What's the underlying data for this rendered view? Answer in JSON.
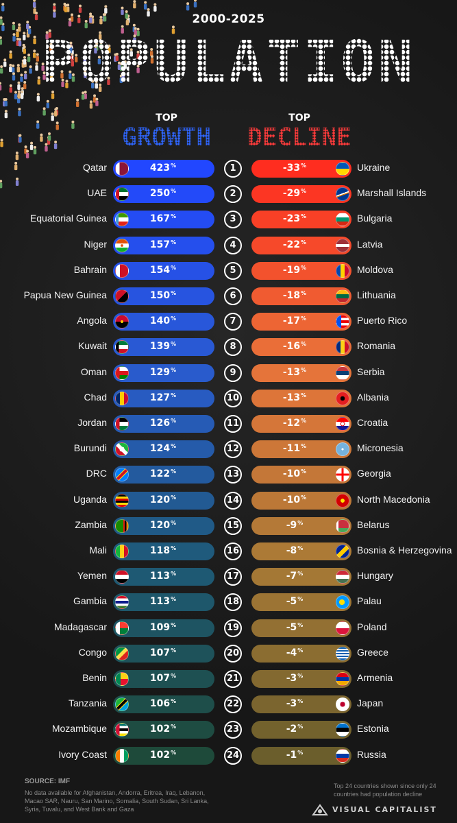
{
  "header": {
    "years": "2000-2025",
    "title": "POPULATION"
  },
  "columns": {
    "growth": {
      "top": "TOP",
      "label": "GROWTH",
      "color": "#2f66ff"
    },
    "decline": {
      "top": "TOP",
      "label": "DECLINE",
      "color": "#ff3b3b"
    }
  },
  "chart_data": {
    "type": "bar",
    "title": "POPULATION",
    "subtitle": "2000-2025",
    "unit": "%",
    "ranks": [
      1,
      2,
      3,
      4,
      5,
      6,
      7,
      8,
      9,
      10,
      11,
      12,
      13,
      14,
      15,
      16,
      17,
      18,
      19,
      20,
      21,
      22,
      23,
      24
    ],
    "series": [
      {
        "name": "GROWTH",
        "categories": [
          "Qatar",
          "UAE",
          "Equatorial Guinea",
          "Niger",
          "Bahrain",
          "Papua New Guinea",
          "Angola",
          "Kuwait",
          "Oman",
          "Chad",
          "Jordan",
          "Burundi",
          "DRC",
          "Uganda",
          "Zambia",
          "Mali",
          "Yemen",
          "Gambia",
          "Madagascar",
          "Congo",
          "Benin",
          "Tanzania",
          "Mozambique",
          "Ivory Coast"
        ],
        "values": [
          423,
          250,
          167,
          157,
          154,
          150,
          140,
          139,
          129,
          127,
          126,
          124,
          122,
          120,
          120,
          118,
          113,
          113,
          109,
          107,
          107,
          106,
          102,
          102
        ]
      },
      {
        "name": "DECLINE",
        "categories": [
          "Ukraine",
          "Marshall Islands",
          "Bulgaria",
          "Latvia",
          "Moldova",
          "Lithuania",
          "Puerto Rico",
          "Romania",
          "Serbia",
          "Albania",
          "Croatia",
          "Micronesia",
          "Georgia",
          "North Macedonia",
          "Belarus",
          "Bosnia & Herzegovina",
          "Hungary",
          "Palau",
          "Poland",
          "Greece",
          "Armenia",
          "Japan",
          "Estonia",
          "Russia"
        ],
        "values": [
          -33,
          -29,
          -23,
          -22,
          -19,
          -18,
          -17,
          -16,
          -13,
          -13,
          -12,
          -11,
          -10,
          -10,
          -9,
          -8,
          -7,
          -5,
          -5,
          -4,
          -3,
          -3,
          -2,
          -1
        ]
      }
    ]
  },
  "footer": {
    "source_label": "SOURCE:",
    "source_value": "IMF",
    "no_data_note": "No data available for Afghanistan, Andorra, Eritrea, Iraq, Lebanon, Macao SAR, Nauru, San Marino, Somalia, South Sudan, Sri Lanka, Syria, Tuvalu, and West Bank and Gaza",
    "top_note": "Top 24 countries shown since only 24 countries had population decline",
    "brand": "VISUAL CAPITALIST"
  }
}
